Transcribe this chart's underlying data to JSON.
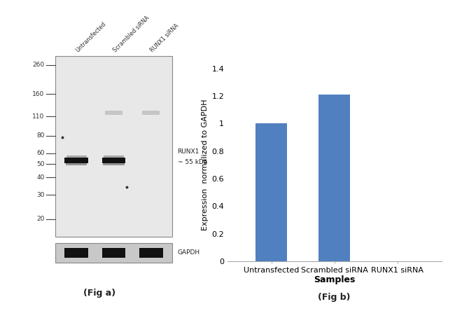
{
  "fig_background": "#ffffff",
  "wb_panel": {
    "lane_labels": [
      "Untransfected",
      "Scrambled siRNA",
      "RUNX1 siRNA"
    ],
    "mw_markers": [
      260,
      160,
      110,
      80,
      60,
      50,
      40,
      30,
      20
    ],
    "band_annotation_line1": "RUNX1",
    "band_annotation_line2": "~ 55 kDa",
    "gapdh_label": "GAPDH",
    "fig_label": "(Fig a)",
    "blot_bg": "#e8e8e8",
    "blot_edge": "#888888",
    "gapdh_bg": "#c8c8c8",
    "band_color": "#111111",
    "faint_band_color": "#aaaaaa",
    "dot_color": "#333333"
  },
  "bar_panel": {
    "categories": [
      "Untransfected",
      "Scrambled siRNA",
      "RUNX1 siRNA"
    ],
    "values": [
      1.0,
      1.21,
      0.0
    ],
    "bar_color": "#5080bf",
    "ylim": [
      0,
      1.4
    ],
    "yticks": [
      0,
      0.2,
      0.4,
      0.6,
      0.8,
      1.0,
      1.2,
      1.4
    ],
    "ytick_labels": [
      "0",
      "0.2",
      "0.4",
      "0.6",
      "0.8",
      "1",
      "1.2",
      "1.4"
    ],
    "ylabel": "Expression  normalized to GAPDH",
    "xlabel": "Samples",
    "fig_label": "(Fig b)",
    "xlabel_fontsize": 9,
    "ylabel_fontsize": 8,
    "tick_fontsize": 8,
    "bottom_spine_color": "#aaaaaa"
  }
}
